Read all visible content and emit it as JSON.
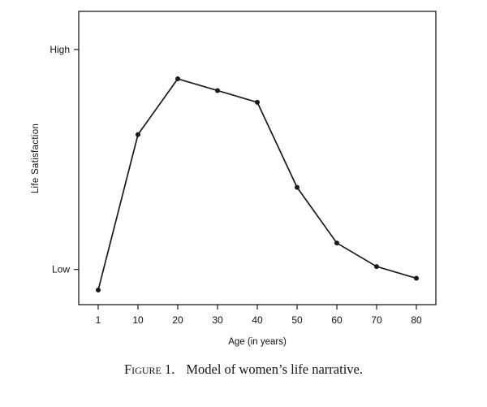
{
  "chart_data": {
    "type": "line",
    "title": "",
    "xlabel": "Age (in years)",
    "ylabel": "Life Satisfaction",
    "categories": [
      1,
      10,
      20,
      30,
      40,
      50,
      60,
      70,
      80
    ],
    "values": [
      5,
      58,
      77,
      73,
      69,
      40,
      21,
      13,
      9
    ],
    "ylim": [
      0,
      100
    ],
    "y_tick_labels": [
      {
        "label": "High",
        "value": 87
      },
      {
        "label": "Low",
        "value": 12
      }
    ],
    "grid": false,
    "legend": false,
    "line_color": "#1a1a1a",
    "marker": "circle"
  },
  "caption": {
    "label": "Figure 1.",
    "text": "Model of women’s life narrative."
  }
}
